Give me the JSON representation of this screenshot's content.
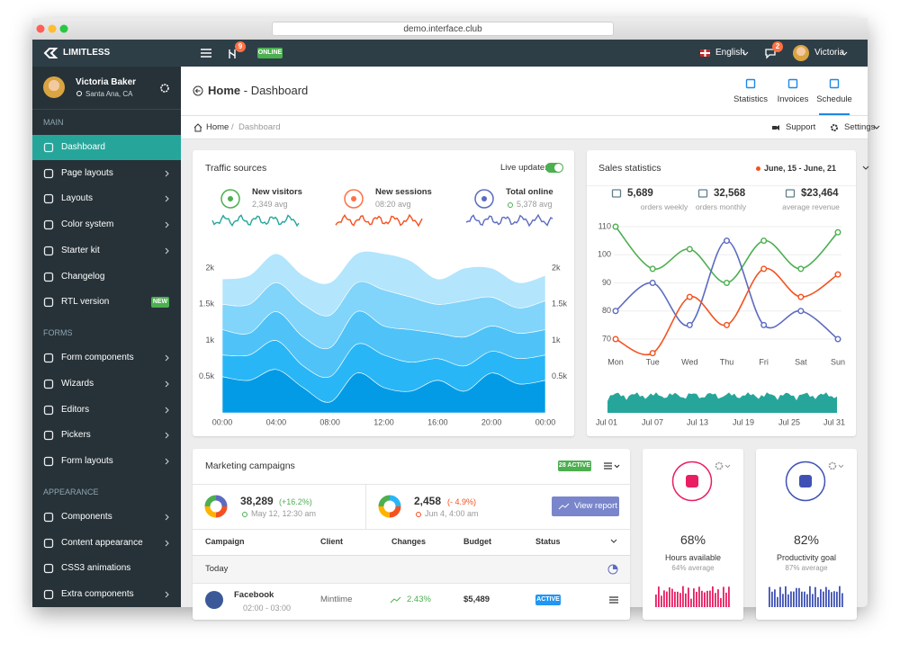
{
  "browser": {
    "url": "demo.interface.club"
  },
  "navbar": {
    "brand": "LIMITLESS",
    "notify_badge": "9",
    "status": "ONLINE",
    "language": "English",
    "messages_badge": "2",
    "user": "Victoria"
  },
  "sidebar": {
    "user_name": "Victoria Baker",
    "user_location": "Santa Ana, CA",
    "sections": [
      {
        "title": "MAIN",
        "items": [
          {
            "label": "Dashboard",
            "active": true,
            "submenu": false
          },
          {
            "label": "Page layouts",
            "submenu": true
          },
          {
            "label": "Layouts",
            "submenu": true
          },
          {
            "label": "Color system",
            "submenu": true
          },
          {
            "label": "Starter kit",
            "submenu": true
          },
          {
            "label": "Changelog",
            "submenu": false
          },
          {
            "label": "RTL version",
            "submenu": false,
            "badge": "NEW"
          }
        ]
      },
      {
        "title": "FORMS",
        "items": [
          {
            "label": "Form components",
            "submenu": true
          },
          {
            "label": "Wizards",
            "submenu": true
          },
          {
            "label": "Editors",
            "submenu": true
          },
          {
            "label": "Pickers",
            "submenu": true
          },
          {
            "label": "Form layouts",
            "submenu": true
          }
        ]
      },
      {
        "title": "APPEARANCE",
        "items": [
          {
            "label": "Components",
            "submenu": true
          },
          {
            "label": "Content appearance",
            "submenu": true
          },
          {
            "label": "CSS3 animations",
            "submenu": false
          },
          {
            "label": "Extra components",
            "submenu": true
          }
        ]
      }
    ]
  },
  "header": {
    "title": "Home",
    "subtitle": "- Dashboard",
    "actions": [
      "Statistics",
      "Invoices",
      "Schedule"
    ]
  },
  "breadcrumb": {
    "items": [
      "Home",
      "Dashboard"
    ],
    "actions": [
      "Support",
      "Settings"
    ]
  },
  "traffic": {
    "live_label": "Live update:",
    "stats": [
      {
        "label": "New visitors",
        "value": "2,349 avg"
      },
      {
        "label": "New sessions",
        "value": "08:20 avg"
      },
      {
        "label": "Total online",
        "value": "5,378 avg"
      }
    ]
  },
  "sales": {
    "range": "June, 15 - June, 21",
    "stats": [
      {
        "value": "5,689",
        "label": "orders weekly"
      },
      {
        "value": "32,568",
        "label": "orders monthly"
      },
      {
        "value": "$23,464",
        "label": "average revenue"
      }
    ],
    "dates": [
      "Jul 01",
      "Jul 07",
      "Jul 13",
      "Jul 19",
      "Jul 25",
      "Jul 31"
    ]
  },
  "chart_data": [
    {
      "type": "area",
      "stacked": true,
      "title": "Traffic sources",
      "x": [
        0,
        2,
        4,
        6,
        8,
        10,
        12,
        14,
        16,
        18,
        20,
        22,
        24
      ],
      "xlim": [
        0,
        24
      ],
      "xticks": [
        {
          "value": 0,
          "label": "00:00"
        },
        {
          "value": 4,
          "label": "04:00"
        },
        {
          "value": 8,
          "label": "08:00"
        },
        {
          "value": 12,
          "label": "12:00"
        },
        {
          "value": 16,
          "label": "16:00"
        },
        {
          "value": 20,
          "label": "20:00"
        },
        {
          "value": 24,
          "label": "00:00"
        }
      ],
      "ylim": [
        0,
        2300
      ],
      "yticks": [
        {
          "value": 500,
          "label": "0.5k"
        },
        {
          "value": 1000,
          "label": "1k"
        },
        {
          "value": 1500,
          "label": "1.5k"
        },
        {
          "value": 2000,
          "label": "2k"
        }
      ],
      "series": [
        {
          "color": "#039be5",
          "values": [
            500,
            450,
            600,
            350,
            150,
            550,
            350,
            300,
            450,
            300,
            550,
            400,
            450
          ]
        },
        {
          "color": "#29b6f6",
          "values": [
            300,
            350,
            400,
            300,
            350,
            400,
            450,
            400,
            300,
            350,
            300,
            350,
            350
          ]
        },
        {
          "color": "#4fc3f7",
          "values": [
            350,
            300,
            400,
            400,
            400,
            450,
            400,
            450,
            350,
            400,
            350,
            350,
            350
          ]
        },
        {
          "color": "#81d4fa",
          "values": [
            350,
            400,
            400,
            450,
            450,
            400,
            500,
            450,
            400,
            500,
            400,
            350,
            400
          ]
        },
        {
          "color": "#b3e5fc",
          "values": [
            350,
            400,
            400,
            400,
            450,
            400,
            500,
            500,
            350,
            450,
            400,
            350,
            350
          ]
        }
      ]
    },
    {
      "type": "line",
      "title": "Sales statistics",
      "categories": [
        "Mon",
        "Tue",
        "Wed",
        "Thu",
        "Fri",
        "Sat",
        "Sun"
      ],
      "ylim": [
        64,
        114
      ],
      "yticks": [
        70,
        80,
        90,
        100,
        110
      ],
      "grid": true,
      "series": [
        {
          "color": "#4caf50",
          "values": [
            110,
            95,
            102,
            90,
            105,
            95,
            108
          ]
        },
        {
          "color": "#5c6bc0",
          "values": [
            80,
            90,
            75,
            105,
            75,
            80,
            70
          ]
        },
        {
          "color": "#f4511e",
          "values": [
            70,
            65,
            85,
            75,
            95,
            85,
            93
          ]
        }
      ]
    }
  ],
  "marketing": {
    "title": "Marketing campaigns",
    "badge": "28 ACTIVE",
    "stats": [
      {
        "value": "38,289",
        "change": "(+16.2%)",
        "date": "May 12, 12:30 am"
      },
      {
        "value": "2,458",
        "change": "(- 4.9%)",
        "date": "Jun 4, 4:00 am"
      }
    ],
    "button": "View report",
    "columns": [
      "Campaign",
      "Client",
      "Changes",
      "Budget",
      "Status"
    ],
    "group": "Today",
    "rows": [
      {
        "campaign": "Facebook",
        "time": "02:00 - 03:00",
        "client": "Mintlime",
        "change": "2.43%",
        "budget": "$5,489",
        "status": "ACTIVE"
      }
    ]
  },
  "widgets": [
    {
      "value": "68%",
      "label": "Hours available",
      "note": "64% average"
    },
    {
      "value": "82%",
      "label": "Productivity goal",
      "note": "87% average"
    }
  ]
}
